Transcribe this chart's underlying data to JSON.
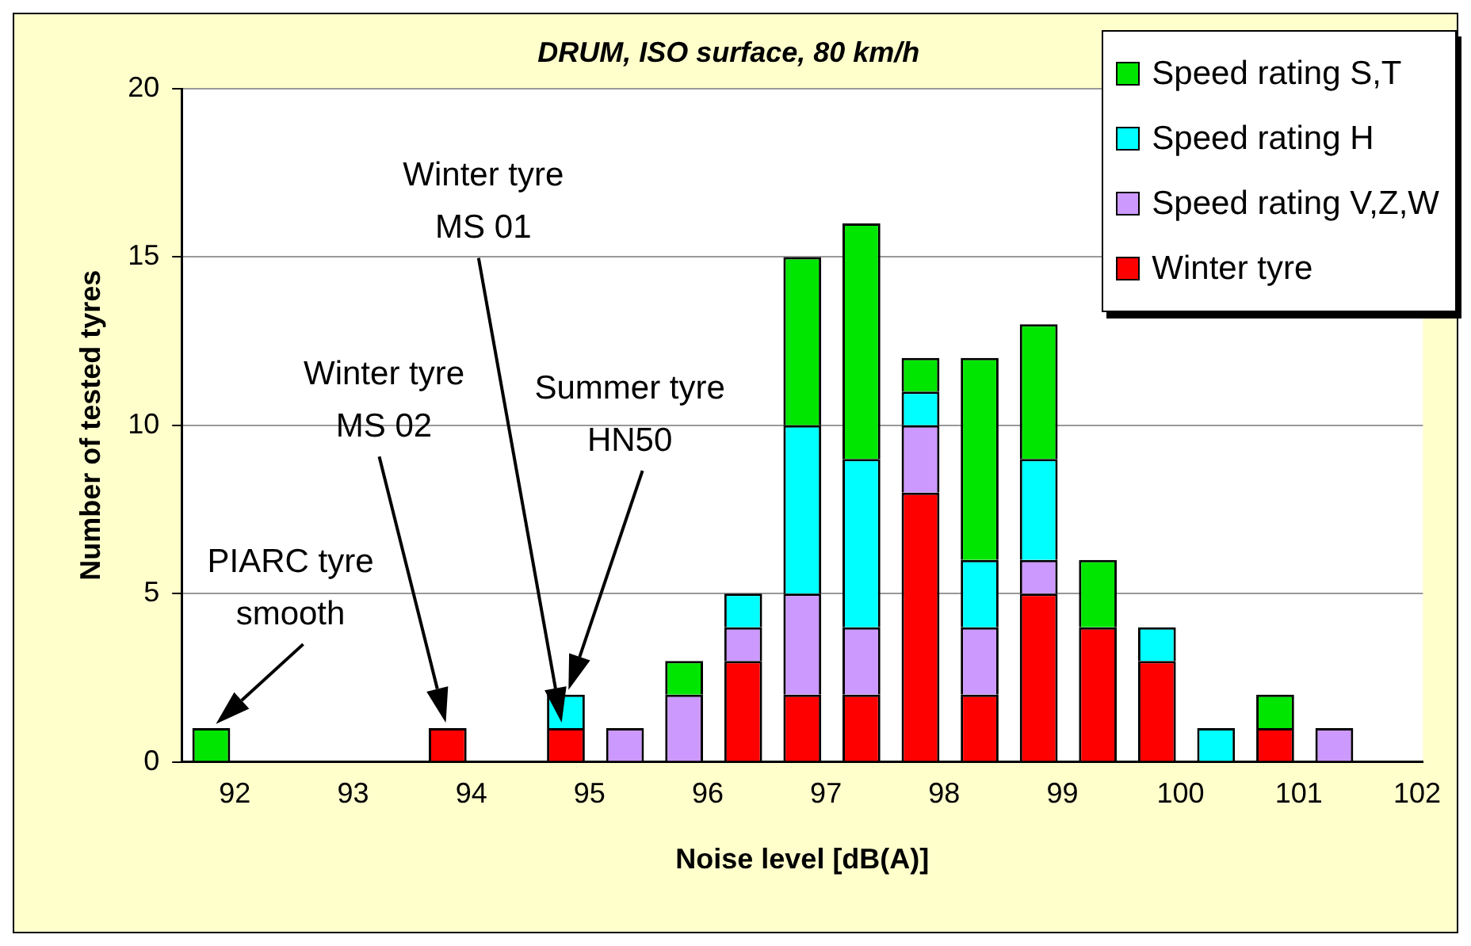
{
  "chart_data": {
    "type": "bar",
    "title": "DRUM, ISO surface, 80 km/h",
    "xlabel": "Noise level [dB(A)]",
    "ylabel": "Number of tested tyres",
    "x": [
      91.8,
      93.8,
      94.8,
      95.3,
      95.8,
      96.3,
      96.8,
      97.3,
      97.8,
      98.3,
      98.8,
      99.3,
      99.8,
      100.3,
      100.8,
      101.3
    ],
    "series": [
      {
        "name": "Winter tyre",
        "color": "#ff0000",
        "values": [
          0,
          1,
          1,
          0,
          0,
          3,
          2,
          2,
          8,
          2,
          5,
          4,
          3,
          0,
          1,
          0
        ]
      },
      {
        "name": "Speed rating V,Z,W",
        "color": "#cc99ff",
        "values": [
          0,
          0,
          0,
          1,
          2,
          1,
          3,
          2,
          2,
          2,
          1,
          0,
          0,
          0,
          0,
          1
        ]
      },
      {
        "name": "Speed rating H",
        "color": "#00ffff",
        "values": [
          0,
          0,
          1,
          0,
          0,
          1,
          5,
          5,
          1,
          2,
          3,
          0,
          1,
          1,
          0,
          0
        ]
      },
      {
        "name": "Speed rating S,T",
        "color": "#00e600",
        "values": [
          1,
          0,
          0,
          0,
          1,
          0,
          5,
          7,
          1,
          6,
          4,
          2,
          0,
          0,
          1,
          0
        ]
      }
    ],
    "stacked": true,
    "xlim": [
      91.55,
      102.05
    ],
    "xticks": [
      92,
      93,
      94,
      95,
      96,
      97,
      98,
      99,
      100,
      101,
      102
    ],
    "ylim": [
      0,
      20
    ],
    "yticks": [
      0,
      5,
      10,
      15,
      20
    ],
    "grid": "y",
    "legend": "top right",
    "annotations": [
      {
        "text": "PIARC tyre\nsmooth",
        "x": 91.8,
        "y": 1
      },
      "Winter tyre\nMS 02",
      "Winter tyre\nMS 01",
      "Summer tyre\nHN50"
    ]
  }
}
